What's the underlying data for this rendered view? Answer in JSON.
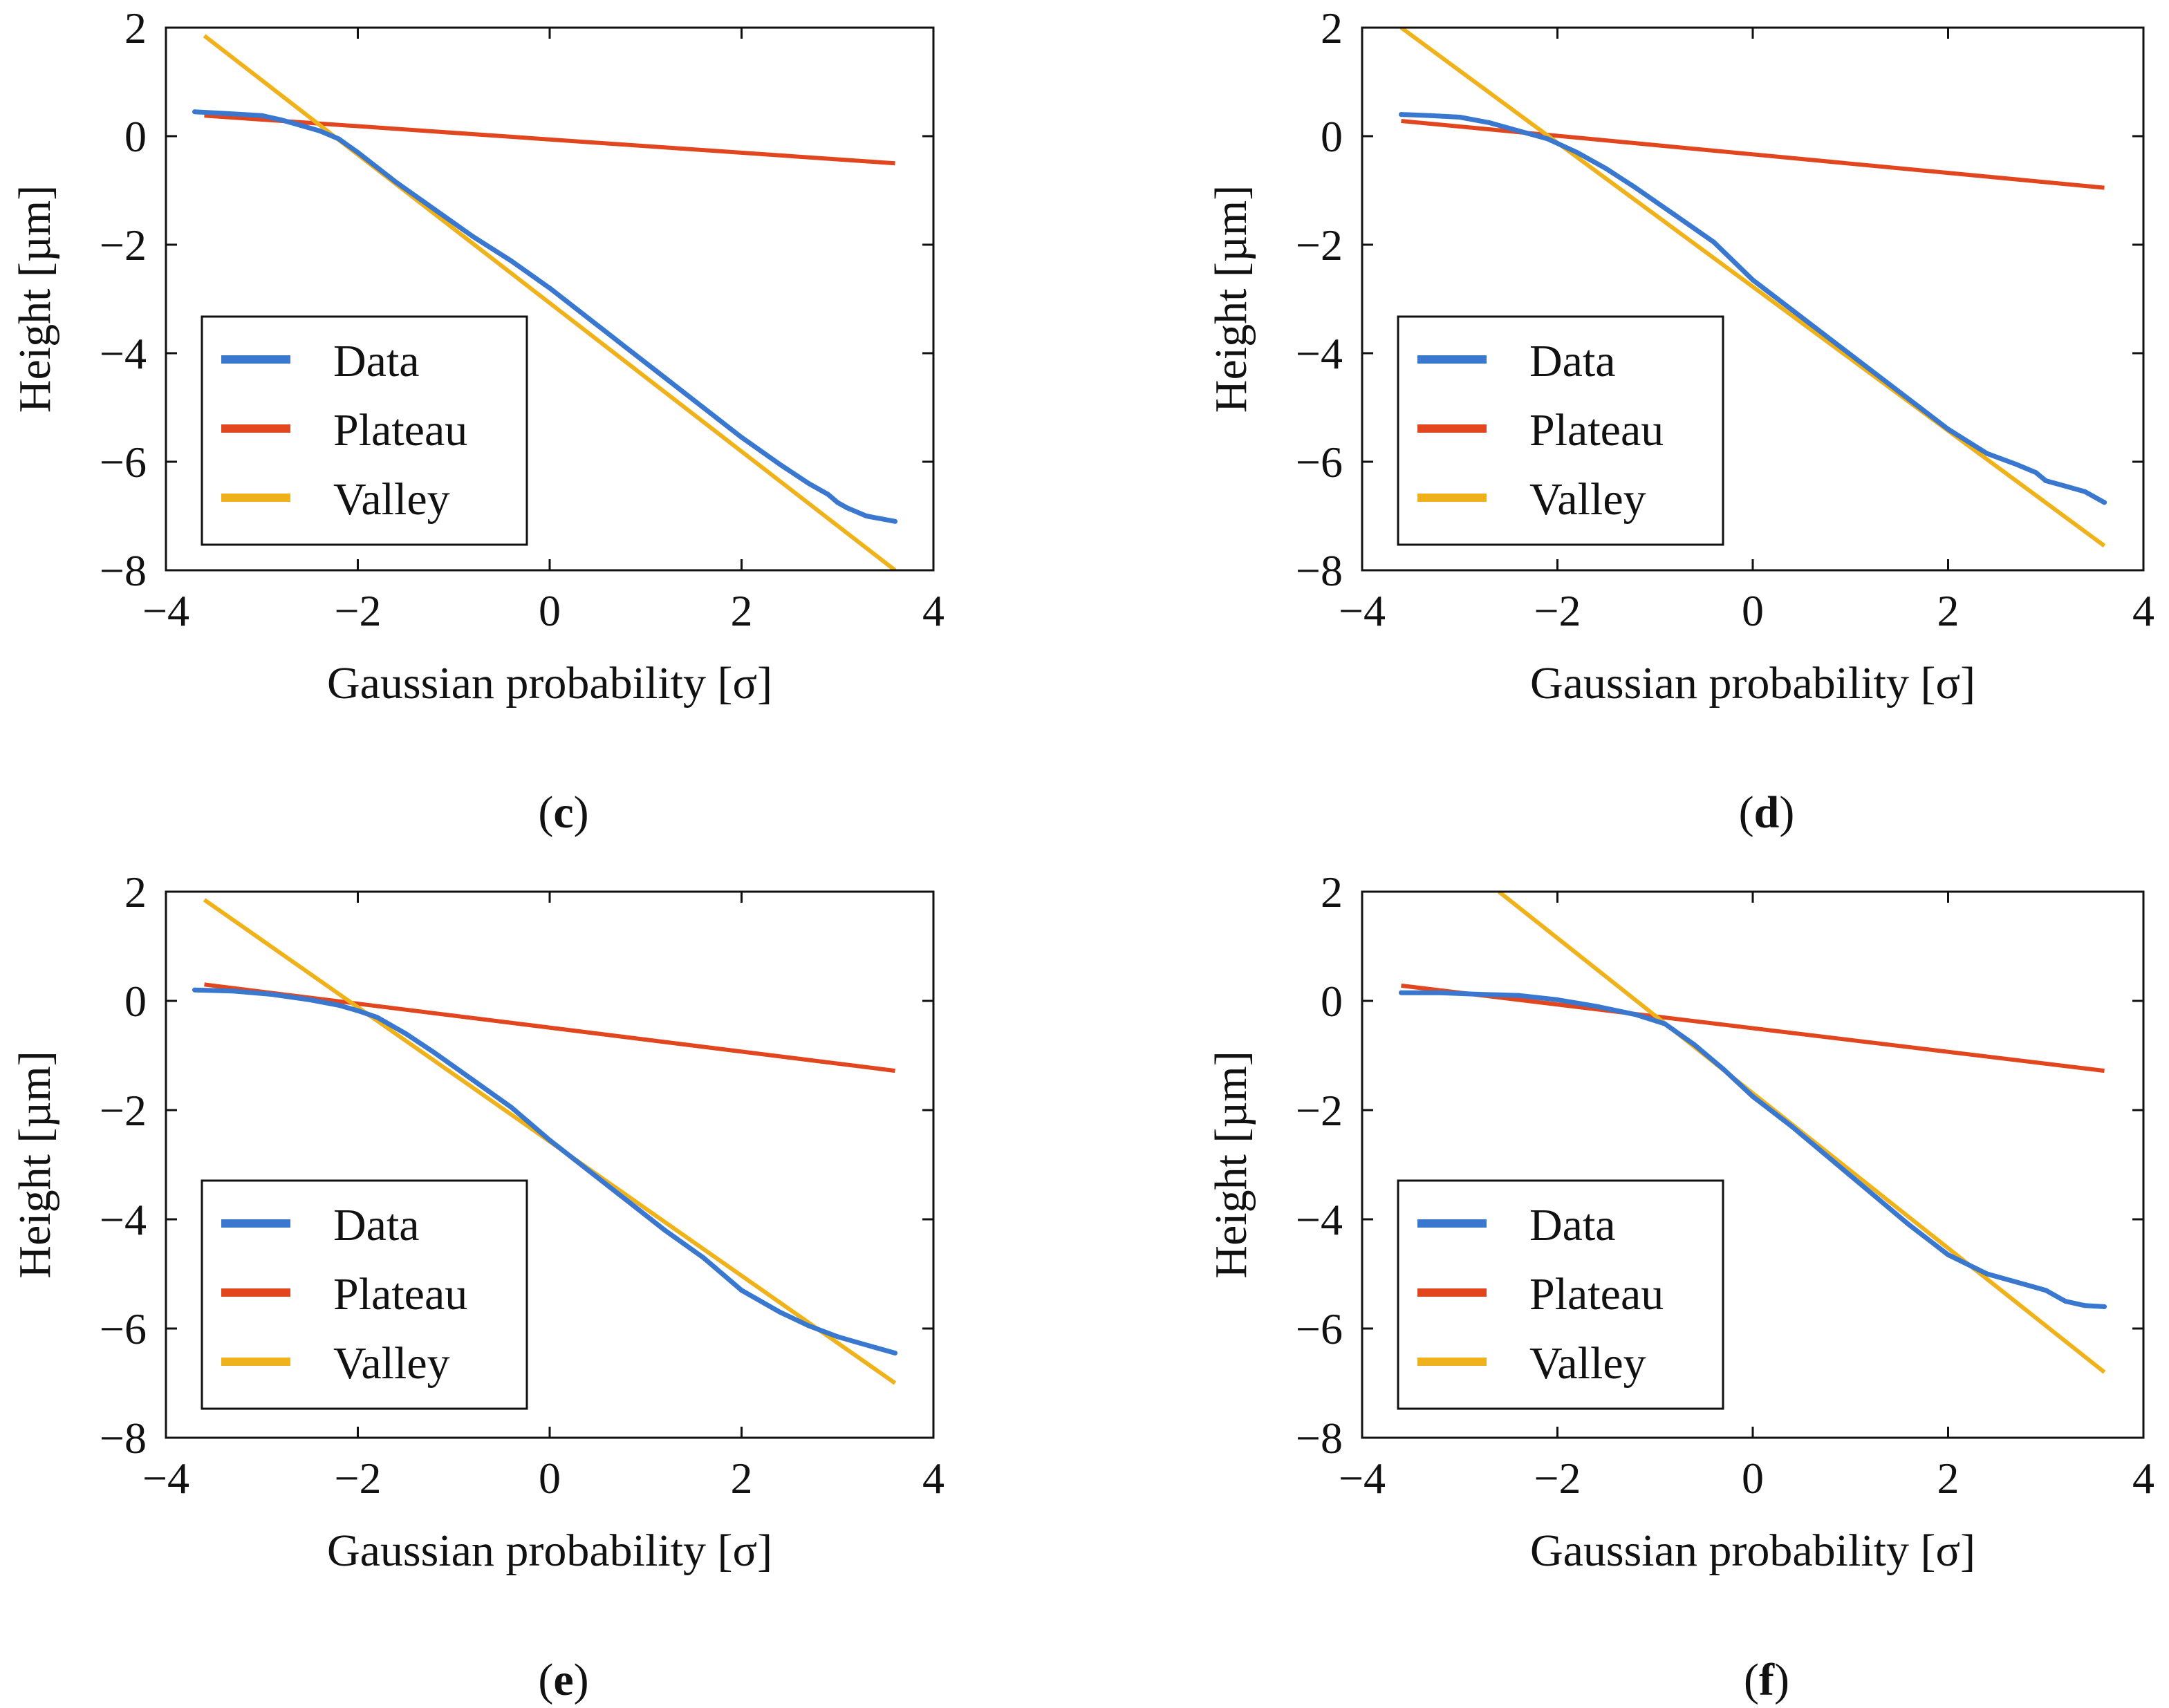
{
  "colors": {
    "data": "#3a78cf",
    "plateau": "#e2461f",
    "valley": "#f0b21a",
    "axis": "#111111"
  },
  "chart_data": [
    {
      "type": "line",
      "panel": "c",
      "caption": {
        "open": "(",
        "letter": "c",
        "close": ")"
      },
      "xlabel": "Gaussian probability [σ]",
      "ylabel": "Height [µm]",
      "xlim": [
        -4,
        4
      ],
      "ylim": [
        -8,
        2
      ],
      "xticks": [
        -4,
        -2,
        0,
        2,
        4
      ],
      "yticks": [
        -8,
        -6,
        -4,
        -2,
        0,
        2
      ],
      "tick_labels": {
        "x": [
          "−4",
          "−2",
          "0",
          "2",
          "4"
        ],
        "y": [
          "−8",
          "−6",
          "−4",
          "−2",
          "0",
          "2"
        ]
      },
      "legend": {
        "position": "lower-left",
        "entries": [
          "Data",
          "Plateau",
          "Valley"
        ]
      },
      "series": [
        {
          "name": "Data",
          "x": [
            -3.7,
            -3.4,
            -3.0,
            -2.8,
            -2.6,
            -2.4,
            -2.2,
            -2.0,
            -1.6,
            -1.2,
            -0.8,
            -0.4,
            0.0,
            0.4,
            0.8,
            1.2,
            1.6,
            2.0,
            2.4,
            2.7,
            2.9,
            3.0,
            3.1,
            3.3,
            3.6
          ],
          "y": [
            0.45,
            0.42,
            0.38,
            0.3,
            0.2,
            0.1,
            -0.05,
            -0.3,
            -0.85,
            -1.35,
            -1.85,
            -2.3,
            -2.8,
            -3.35,
            -3.9,
            -4.45,
            -5.0,
            -5.55,
            -6.05,
            -6.4,
            -6.6,
            -6.75,
            -6.85,
            -7.0,
            -7.1
          ]
        },
        {
          "name": "Plateau",
          "x": [
            -3.6,
            3.6
          ],
          "y": [
            0.38,
            -0.5
          ]
        },
        {
          "name": "Valley",
          "x": [
            -3.6,
            3.6
          ],
          "y": [
            1.85,
            -8.0
          ]
        }
      ]
    },
    {
      "type": "line",
      "panel": "d",
      "caption": {
        "open": "(",
        "letter": "d",
        "close": ")"
      },
      "xlabel": "Gaussian probability [σ]",
      "ylabel": "Height [µm]",
      "xlim": [
        -4,
        4
      ],
      "ylim": [
        -8,
        2
      ],
      "xticks": [
        -4,
        -2,
        0,
        2,
        4
      ],
      "yticks": [
        -8,
        -6,
        -4,
        -2,
        0,
        2
      ],
      "tick_labels": {
        "x": [
          "−4",
          "−2",
          "0",
          "2",
          "4"
        ],
        "y": [
          "−8",
          "−6",
          "−4",
          "−2",
          "0",
          "2"
        ]
      },
      "legend": {
        "position": "lower-left",
        "entries": [
          "Data",
          "Plateau",
          "Valley"
        ]
      },
      "series": [
        {
          "name": "Data",
          "x": [
            -3.6,
            -3.3,
            -3.0,
            -2.7,
            -2.4,
            -2.1,
            -1.8,
            -1.5,
            -1.2,
            -0.8,
            -0.4,
            0.0,
            0.4,
            0.8,
            1.2,
            1.6,
            2.0,
            2.4,
            2.7,
            2.9,
            3.0,
            3.2,
            3.4,
            3.6
          ],
          "y": [
            0.4,
            0.38,
            0.35,
            0.25,
            0.1,
            -0.05,
            -0.3,
            -0.6,
            -0.95,
            -1.45,
            -1.95,
            -2.65,
            -3.2,
            -3.75,
            -4.3,
            -4.85,
            -5.4,
            -5.85,
            -6.05,
            -6.2,
            -6.35,
            -6.45,
            -6.55,
            -6.75
          ]
        },
        {
          "name": "Plateau",
          "x": [
            -3.6,
            3.6
          ],
          "y": [
            0.28,
            -0.95
          ]
        },
        {
          "name": "Valley",
          "x": [
            -3.6,
            3.6
          ],
          "y": [
            2.0,
            -7.55
          ]
        }
      ]
    },
    {
      "type": "line",
      "panel": "e",
      "caption": {
        "open": "(",
        "letter": "e",
        "close": ")"
      },
      "xlabel": "Gaussian probability [σ]",
      "ylabel": "Height [µm]",
      "xlim": [
        -4,
        4
      ],
      "ylim": [
        -8,
        2
      ],
      "xticks": [
        -4,
        -2,
        0,
        2,
        4
      ],
      "yticks": [
        -8,
        -6,
        -4,
        -2,
        0,
        2
      ],
      "tick_labels": {
        "x": [
          "−4",
          "−2",
          "0",
          "2",
          "4"
        ],
        "y": [
          "−8",
          "−6",
          "−4",
          "−2",
          "0",
          "2"
        ]
      },
      "legend": {
        "position": "lower-left",
        "entries": [
          "Data",
          "Plateau",
          "Valley"
        ]
      },
      "series": [
        {
          "name": "Data",
          "x": [
            -3.7,
            -3.3,
            -2.9,
            -2.5,
            -2.2,
            -2.0,
            -1.8,
            -1.5,
            -1.2,
            -0.8,
            -0.4,
            0.0,
            0.4,
            0.8,
            1.2,
            1.6,
            2.0,
            2.4,
            2.7,
            3.0,
            3.2,
            3.4,
            3.6
          ],
          "y": [
            0.2,
            0.18,
            0.12,
            0.02,
            -0.08,
            -0.18,
            -0.3,
            -0.6,
            -0.95,
            -1.45,
            -1.95,
            -2.55,
            -3.1,
            -3.65,
            -4.2,
            -4.7,
            -5.3,
            -5.7,
            -5.95,
            -6.15,
            -6.25,
            -6.35,
            -6.45
          ]
        },
        {
          "name": "Plateau",
          "x": [
            -3.6,
            3.6
          ],
          "y": [
            0.3,
            -1.28
          ]
        },
        {
          "name": "Valley",
          "x": [
            -3.6,
            3.6
          ],
          "y": [
            1.85,
            -7.0
          ]
        }
      ]
    },
    {
      "type": "line",
      "panel": "f",
      "caption": {
        "open": "(",
        "letter": "f",
        "close": ")"
      },
      "xlabel": "Gaussian probability [σ]",
      "ylabel": "Height [µm]",
      "xlim": [
        -4,
        4
      ],
      "ylim": [
        -8,
        2
      ],
      "xticks": [
        -4,
        -2,
        0,
        2,
        4
      ],
      "yticks": [
        -8,
        -6,
        -4,
        -2,
        0,
        2
      ],
      "tick_labels": {
        "x": [
          "−4",
          "−2",
          "0",
          "2",
          "4"
        ],
        "y": [
          "−8",
          "−6",
          "−4",
          "−2",
          "0",
          "2"
        ]
      },
      "legend": {
        "position": "lower-left",
        "entries": [
          "Data",
          "Plateau",
          "Valley"
        ]
      },
      "series": [
        {
          "name": "Data",
          "x": [
            -3.6,
            -3.2,
            -2.8,
            -2.4,
            -2.0,
            -1.6,
            -1.2,
            -0.9,
            -0.6,
            -0.3,
            0.0,
            0.4,
            0.8,
            1.2,
            1.6,
            2.0,
            2.4,
            2.8,
            3.0,
            3.2,
            3.4,
            3.6
          ],
          "y": [
            0.15,
            0.15,
            0.12,
            0.1,
            0.02,
            -0.1,
            -0.25,
            -0.42,
            -0.8,
            -1.25,
            -1.75,
            -2.3,
            -2.9,
            -3.5,
            -4.1,
            -4.65,
            -5.0,
            -5.2,
            -5.3,
            -5.5,
            -5.58,
            -5.6
          ]
        },
        {
          "name": "Plateau",
          "x": [
            -3.6,
            3.6
          ],
          "y": [
            0.28,
            -1.28
          ]
        },
        {
          "name": "Valley",
          "x": [
            -2.6,
            3.6
          ],
          "y": [
            2.0,
            -6.8
          ]
        }
      ]
    }
  ]
}
